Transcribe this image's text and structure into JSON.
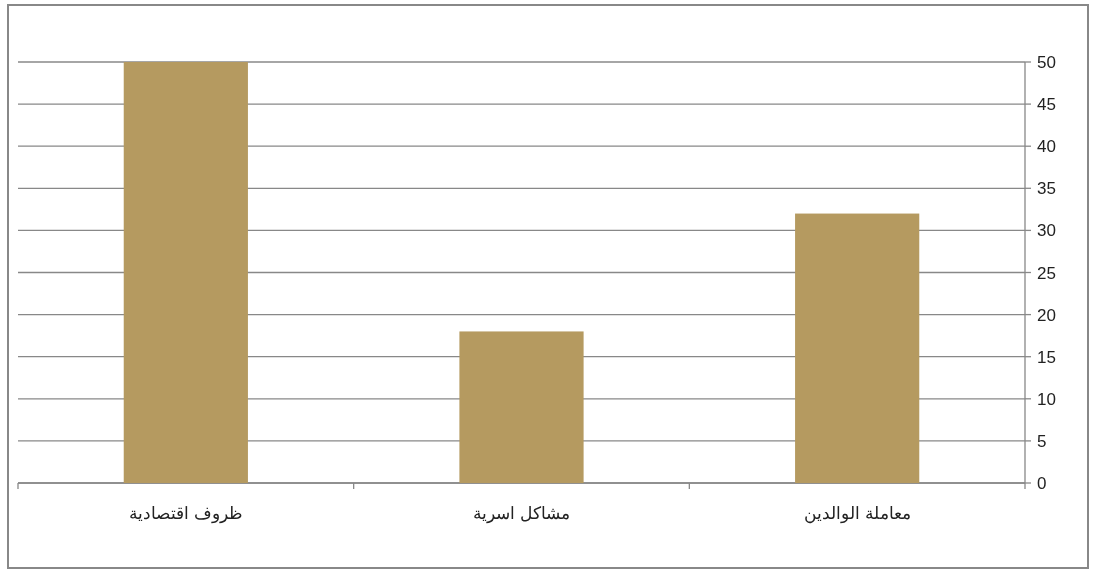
{
  "chart_data": {
    "type": "bar",
    "categories": [
      "ظروف اقتصادية",
      "مشاكل اسرية",
      "معاملة الوالدين"
    ],
    "values": [
      50,
      18,
      32
    ],
    "color": "#b59a60",
    "ylim": [
      0,
      50
    ],
    "yticks": [
      0,
      5,
      10,
      15,
      20,
      25,
      30,
      35,
      40,
      45,
      50
    ],
    "grid": "y"
  }
}
